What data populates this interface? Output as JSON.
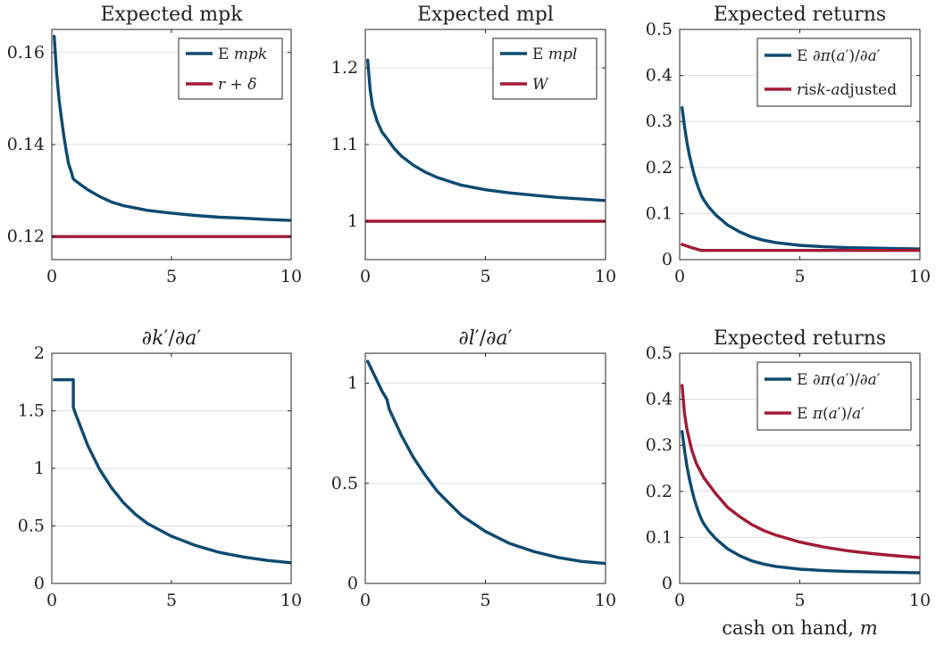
{
  "colors": {
    "blue": "#0e4a72",
    "red": "#a11b35",
    "grid": "#dddddd",
    "axis": "#262626"
  },
  "chart_data": [
    {
      "type": "line",
      "title": "Expected mpk",
      "xlabel": "",
      "xlim": [
        0,
        10
      ],
      "ylim": [
        0.115,
        0.165
      ],
      "xticks": [
        0,
        5,
        10
      ],
      "xtick_labels": [
        "0",
        "5",
        "10"
      ],
      "yticks": [
        0.12,
        0.14,
        0.16
      ],
      "ytick_labels": [
        "0.12",
        "0.14",
        "0.16"
      ],
      "legend_position": "top-right",
      "series": [
        {
          "name": "E mpk",
          "color": "blue",
          "x": [
            0.1,
            0.2,
            0.3,
            0.4,
            0.5,
            0.6,
            0.7,
            0.8,
            0.9,
            1.2,
            1.5,
            2,
            2.5,
            3,
            4,
            5,
            6,
            7,
            8,
            9,
            10
          ],
          "y": [
            0.1635,
            0.1555,
            0.15,
            0.1458,
            0.142,
            0.1387,
            0.1358,
            0.1343,
            0.1325,
            0.1313,
            0.1302,
            0.1287,
            0.1275,
            0.1267,
            0.1257,
            0.1251,
            0.1246,
            0.1242,
            0.124,
            0.1237,
            0.1235
          ]
        },
        {
          "name": "r + δ",
          "color": "red",
          "x": [
            0,
            10
          ],
          "y": [
            0.12,
            0.12
          ]
        }
      ]
    },
    {
      "type": "line",
      "title": "Expected mpl",
      "xlabel": "",
      "xlim": [
        0,
        10
      ],
      "ylim": [
        0.95,
        1.25
      ],
      "xticks": [
        0,
        5,
        10
      ],
      "xtick_labels": [
        "0",
        "5",
        "10"
      ],
      "yticks": [
        1,
        1.1,
        1.2
      ],
      "ytick_labels": [
        "1",
        "1.1",
        "1.2"
      ],
      "legend_position": "top-right",
      "series": [
        {
          "name": "E mpl",
          "color": "blue",
          "x": [
            0.1,
            0.2,
            0.3,
            0.5,
            0.7,
            0.9,
            1.2,
            1.5,
            2,
            2.5,
            3,
            4,
            5,
            6,
            7,
            8,
            9,
            10
          ],
          "y": [
            1.21,
            1.172,
            1.15,
            1.13,
            1.116,
            1.108,
            1.095,
            1.085,
            1.073,
            1.064,
            1.057,
            1.047,
            1.041,
            1.037,
            1.034,
            1.031,
            1.029,
            1.027
          ]
        },
        {
          "name": "W",
          "color": "red",
          "x": [
            0,
            10
          ],
          "y": [
            1,
            1
          ]
        }
      ]
    },
    {
      "type": "line",
      "title": "Expected returns",
      "xlabel": "",
      "xlim": [
        0,
        10
      ],
      "ylim": [
        0,
        0.5
      ],
      "xticks": [
        0,
        5,
        10
      ],
      "xtick_labels": [
        "0",
        "5",
        "10"
      ],
      "yticks": [
        0,
        0.1,
        0.2,
        0.3,
        0.4,
        0.5
      ],
      "ytick_labels": [
        "0",
        "0.1",
        "0.2",
        "0.3",
        "0.4",
        "0.5"
      ],
      "legend_position": "top-right",
      "series": [
        {
          "name": "E ∂π(a′)/∂a′",
          "color": "blue",
          "x": [
            0.1,
            0.2,
            0.3,
            0.4,
            0.5,
            0.6,
            0.7,
            0.8,
            0.9,
            1.0,
            1.2,
            1.5,
            2,
            2.5,
            3,
            3.5,
            4,
            5,
            6,
            7,
            8,
            9,
            10
          ],
          "y": [
            0.33,
            0.29,
            0.255,
            0.228,
            0.205,
            0.185,
            0.168,
            0.153,
            0.14,
            0.13,
            0.115,
            0.097,
            0.075,
            0.06,
            0.049,
            0.042,
            0.037,
            0.031,
            0.028,
            0.026,
            0.025,
            0.024,
            0.023
          ]
        },
        {
          "name": "risk-adjusted",
          "color": "red",
          "x": [
            0.1,
            0.5,
            0.9,
            10
          ],
          "y": [
            0.033,
            0.026,
            0.02,
            0.02
          ]
        }
      ]
    },
    {
      "type": "line",
      "title": "∂k′/∂a′",
      "xlabel": "",
      "xlim": [
        0,
        10
      ],
      "ylim": [
        0,
        2
      ],
      "xticks": [
        0,
        5,
        10
      ],
      "xtick_labels": [
        "0",
        "5",
        "10"
      ],
      "yticks": [
        0,
        0.5,
        1,
        1.5,
        2
      ],
      "ytick_labels": [
        "0",
        "0.5",
        "1",
        "1.5",
        "2"
      ],
      "series": [
        {
          "color": "blue",
          "x": [
            0.1,
            0.9,
            0.9,
            1.0,
            1.5,
            2,
            2.5,
            3,
            3.5,
            4,
            5,
            6,
            7,
            8,
            9,
            10
          ],
          "y": [
            1.77,
            1.77,
            1.53,
            1.47,
            1.2,
            0.99,
            0.83,
            0.7,
            0.6,
            0.52,
            0.41,
            0.33,
            0.27,
            0.23,
            0.2,
            0.18
          ]
        }
      ]
    },
    {
      "type": "line",
      "title": "∂l′/∂a′",
      "xlabel": "",
      "xlim": [
        0,
        10
      ],
      "ylim": [
        0,
        1.15
      ],
      "xticks": [
        0,
        5,
        10
      ],
      "xtick_labels": [
        "0",
        "5",
        "10"
      ],
      "yticks": [
        0,
        0.5,
        1
      ],
      "ytick_labels": [
        "0",
        "0.5",
        "1"
      ],
      "series": [
        {
          "color": "blue",
          "x": [
            0.1,
            0.3,
            0.5,
            0.7,
            0.9,
            1.0,
            1.5,
            2,
            2.5,
            3,
            3.5,
            4,
            5,
            6,
            7,
            8,
            9,
            10
          ],
          "y": [
            1.11,
            1.06,
            1.01,
            0.96,
            0.92,
            0.87,
            0.74,
            0.63,
            0.54,
            0.46,
            0.4,
            0.34,
            0.26,
            0.2,
            0.16,
            0.13,
            0.11,
            0.1
          ]
        }
      ]
    },
    {
      "type": "line",
      "title": "Expected returns",
      "xlabel": "cash on hand, m",
      "xlim": [
        0,
        10
      ],
      "ylim": [
        0,
        0.5
      ],
      "xticks": [
        0,
        5,
        10
      ],
      "xtick_labels": [
        "0",
        "5",
        "10"
      ],
      "yticks": [
        0,
        0.1,
        0.2,
        0.3,
        0.4,
        0.5
      ],
      "ytick_labels": [
        "0",
        "0.1",
        "0.2",
        "0.3",
        "0.4",
        "0.5"
      ],
      "legend_position": "top-right",
      "series": [
        {
          "name": "E ∂π(a′)/∂a′",
          "color": "blue",
          "x": [
            0.1,
            0.2,
            0.3,
            0.4,
            0.5,
            0.6,
            0.7,
            0.8,
            0.9,
            1.0,
            1.2,
            1.5,
            2,
            2.5,
            3,
            3.5,
            4,
            5,
            6,
            7,
            8,
            9,
            10
          ],
          "y": [
            0.33,
            0.29,
            0.255,
            0.228,
            0.205,
            0.185,
            0.168,
            0.153,
            0.14,
            0.13,
            0.115,
            0.097,
            0.075,
            0.06,
            0.049,
            0.042,
            0.037,
            0.031,
            0.028,
            0.026,
            0.025,
            0.024,
            0.023
          ]
        },
        {
          "name": "E π(a′)/a′",
          "color": "red",
          "x": [
            0.1,
            0.2,
            0.3,
            0.5,
            0.7,
            1.0,
            1.5,
            2,
            2.5,
            3,
            3.5,
            4,
            5,
            6,
            7,
            8,
            9,
            10
          ],
          "y": [
            0.43,
            0.37,
            0.335,
            0.29,
            0.26,
            0.23,
            0.195,
            0.165,
            0.145,
            0.128,
            0.115,
            0.105,
            0.09,
            0.079,
            0.071,
            0.065,
            0.06,
            0.056
          ]
        }
      ]
    }
  ]
}
